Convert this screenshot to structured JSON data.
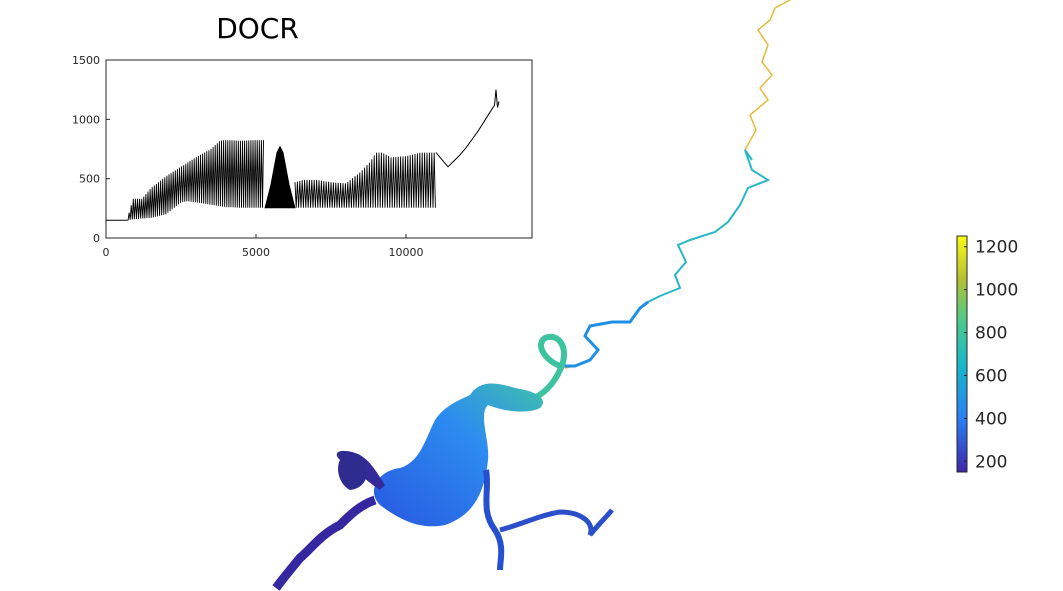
{
  "chart_data": [
    {
      "type": "line",
      "title": "DOCR",
      "xlabel": "",
      "ylabel": "",
      "xlim": [
        0,
        14200
      ],
      "ylim": [
        0,
        1500
      ],
      "x_ticks": [
        0,
        5000,
        10000
      ],
      "y_ticks": [
        0,
        500,
        1000,
        1500
      ],
      "grid": false,
      "series": [
        {
          "oscillating_upper_envelope": {
            "x": [
              0,
              700,
              900,
              1200,
              1500,
              2000,
              2500,
              3000,
              3500,
              3800,
              4000,
              4500,
              5000,
              5250
            ],
            "y": [
              150,
              150,
              330,
              330,
              420,
              520,
              600,
              680,
              750,
              820,
              825,
              820,
              825,
              825
            ]
          },
          "oscillating_lower_envelope": {
            "x": [
              0,
              700,
              1000,
              1500,
              2000,
              2500,
              2700,
              3000,
              3500,
              4000,
              4500,
              5000,
              5250
            ],
            "y": [
              150,
              150,
              160,
              170,
              200,
              300,
              310,
              300,
              280,
              260,
              255,
              255,
              255
            ]
          },
          "peak_dome": {
            "x": [
              5300,
              5500,
              5700,
              5800,
              5900,
              6100,
              6300
            ],
            "y": [
              250,
              450,
              720,
              770,
              720,
              450,
              250
            ]
          },
          "oscillating_upper_envelope_2": {
            "x": [
              6300,
              6600,
              7000,
              7500,
              8000,
              8500,
              8800,
              9000,
              9200,
              9500,
              10000,
              10500,
              11000
            ],
            "y": [
              470,
              490,
              490,
              470,
              460,
              560,
              640,
              720,
              720,
              680,
              690,
              720,
              720
            ]
          },
          "oscillating_lower_envelope_2": {
            "x": [
              6300,
              11000
            ],
            "y": [
              255,
              255
            ]
          },
          "continuous_tail": {
            "x": [
              11000,
              11200,
              11400,
              11600,
              11800,
              12000,
              12200,
              12400,
              12600,
              12800,
              12950,
              13000,
              13050,
              13100
            ],
            "y": [
              720,
              660,
              600,
              650,
              700,
              760,
              830,
              900,
              980,
              1060,
              1120,
              1250,
              1100,
              1150
            ]
          }
        }
      ]
    },
    {
      "type": "heatmap",
      "colorbar_ticks": [
        200,
        400,
        600,
        800,
        1000,
        1200
      ],
      "colorbar_range": [
        150,
        1250
      ],
      "colormap": [
        "#3e26a8",
        "#2c7cf6",
        "#17b8c9",
        "#4cc98c",
        "#b6c032",
        "#f9fb15"
      ],
      "line_color": "#000000",
      "axis_color": "#262626"
    }
  ]
}
